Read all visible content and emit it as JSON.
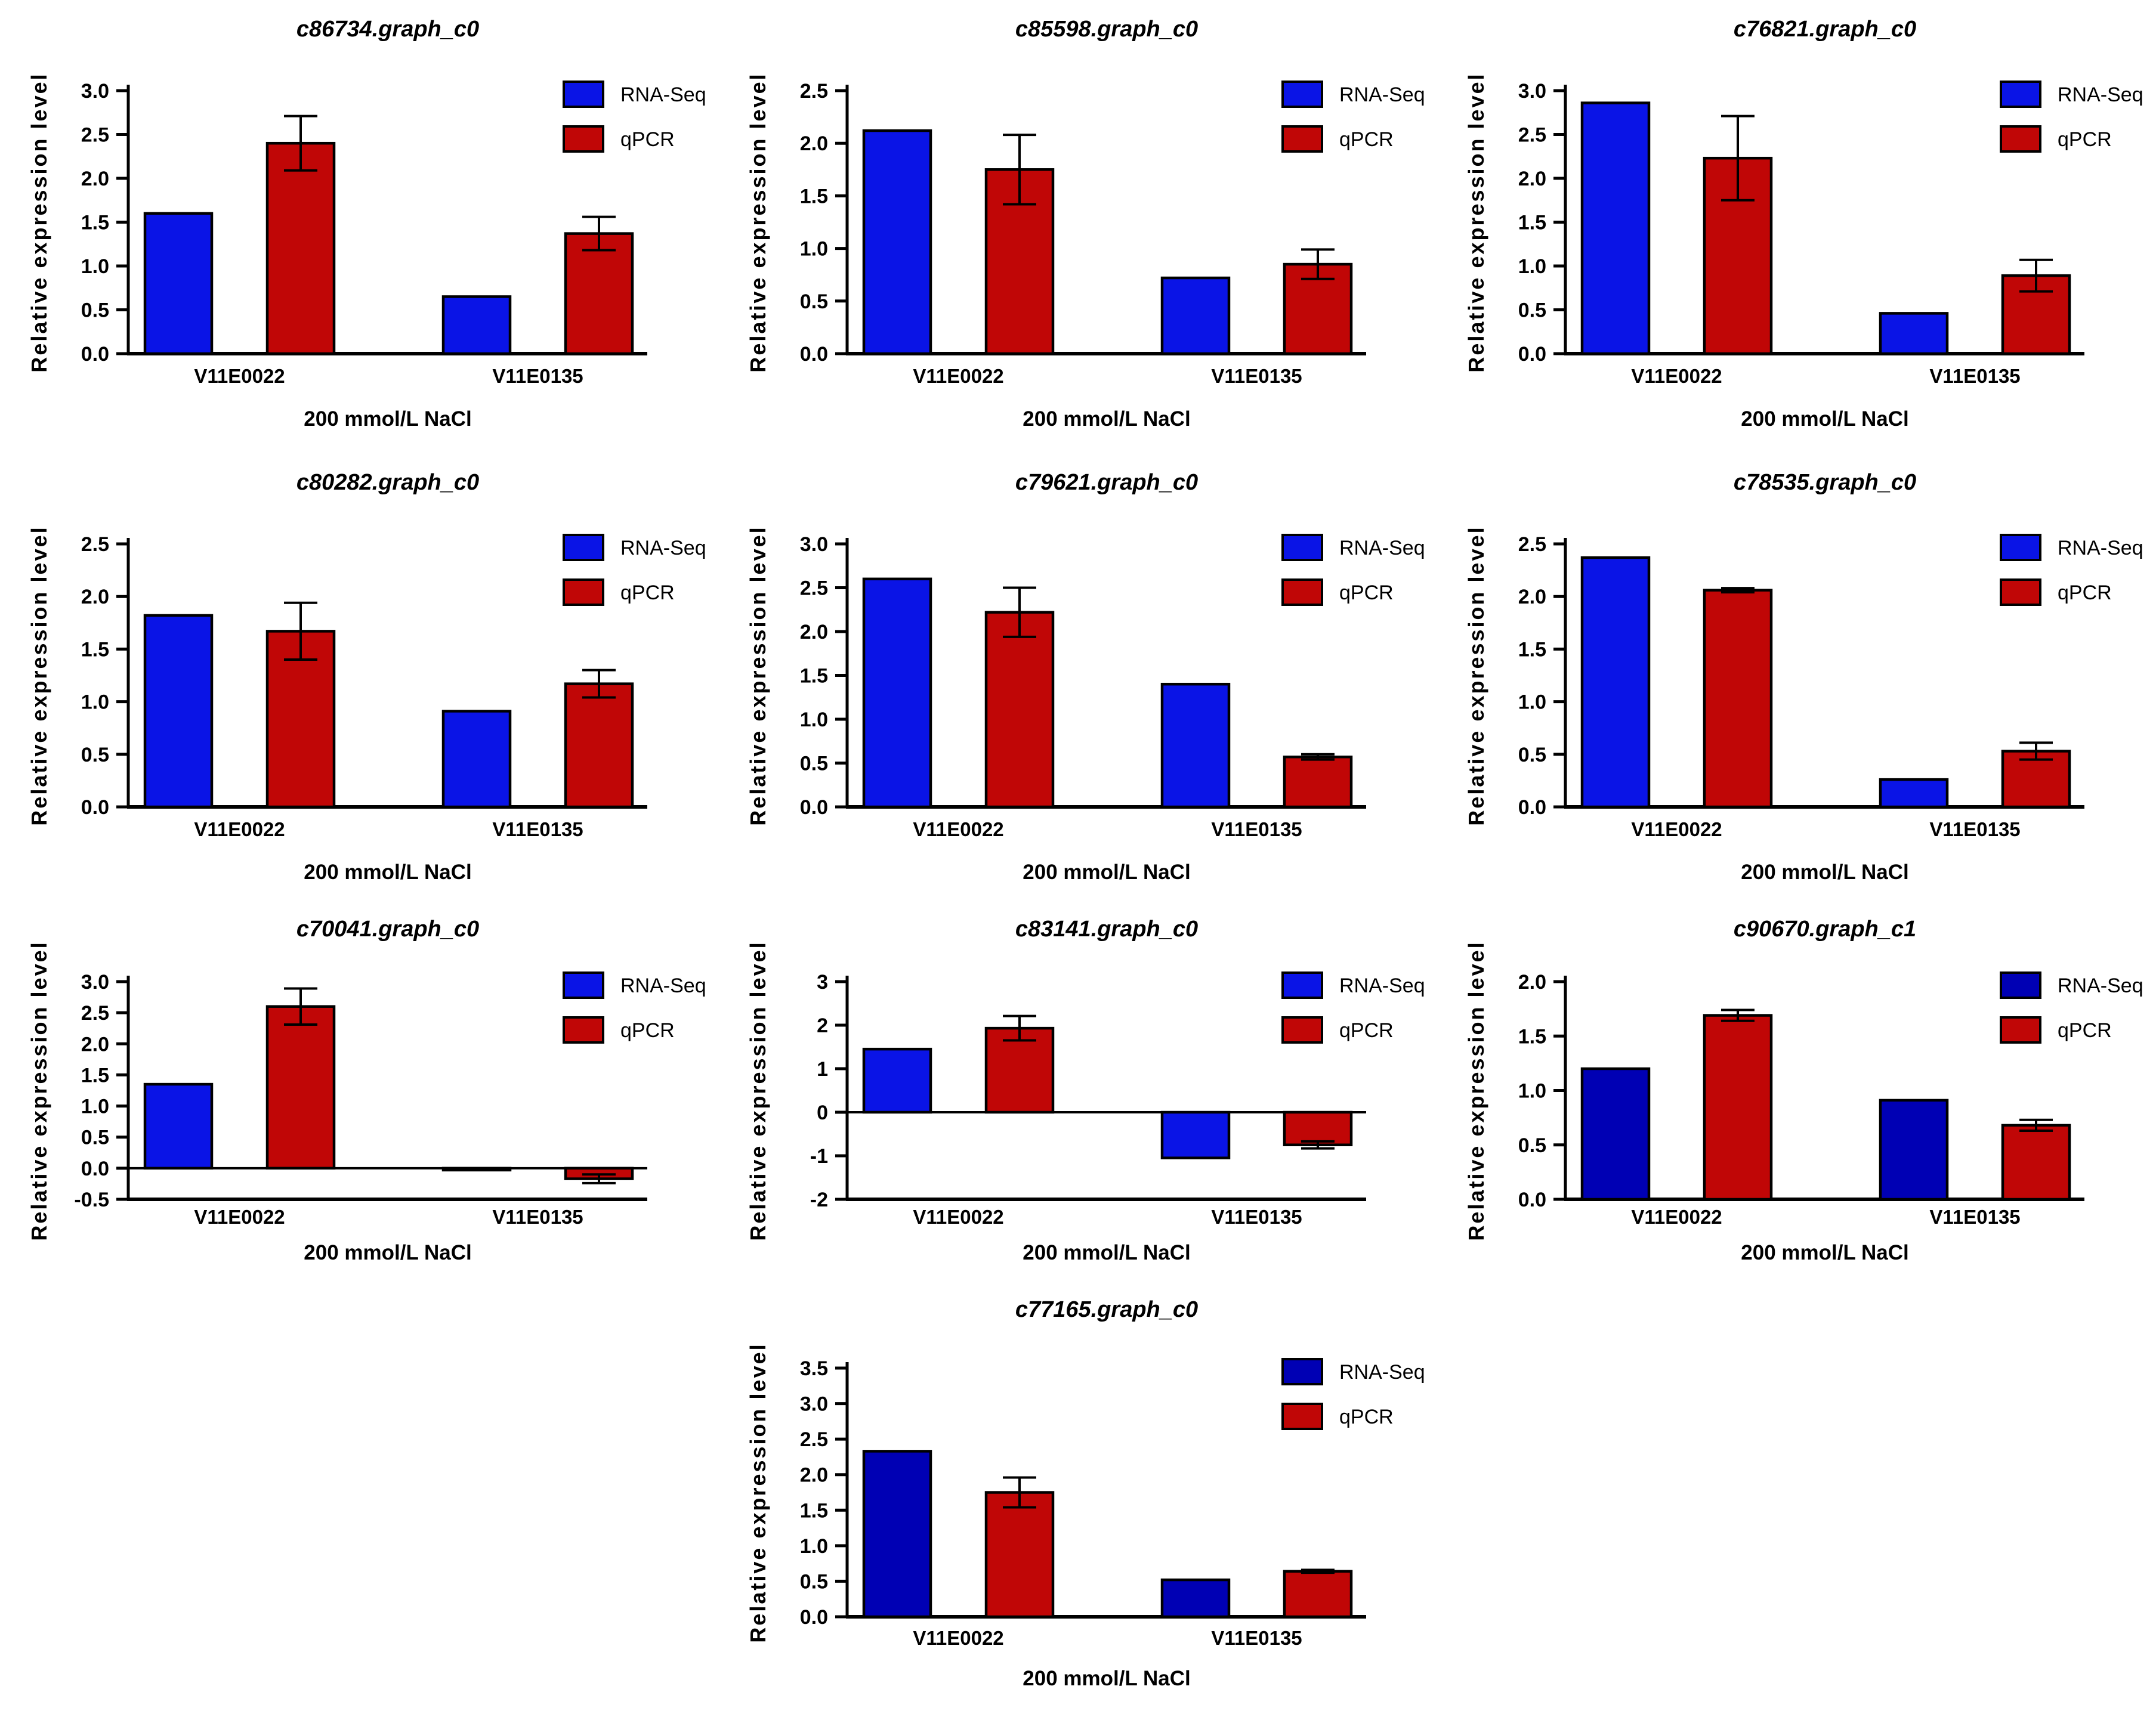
{
  "figure": {
    "ylabel": "Relative expression level",
    "xlabel": "200 mmol/L NaCl",
    "categories": [
      "V11E0022",
      "V11E0135"
    ],
    "legend": [
      "RNA-Seq",
      "qPCR"
    ],
    "colors": {
      "rna_seq_bright": "#0a14e6",
      "rna_seq_navy": "#0000b4",
      "qpcr_red": "#c00606",
      "axis": "#000000",
      "background": "#ffffff"
    }
  },
  "chart_data": [
    {
      "type": "bar",
      "title": "c86734.graph_c0",
      "ylabel": "Relative expression level",
      "xlabel": "200 mmol/L NaCl",
      "categories": [
        "V11E0022",
        "V11E0135"
      ],
      "series": [
        {
          "name": "RNA-Seq",
          "values": [
            1.6,
            0.65
          ],
          "errors": [
            0,
            0
          ]
        },
        {
          "name": "qPCR",
          "values": [
            2.4,
            1.37
          ],
          "errors": [
            0.31,
            0.19
          ]
        }
      ],
      "ylim": [
        0,
        3.0
      ],
      "yticks": [
        "0.0",
        "0.5",
        "1.0",
        "1.5",
        "2.0",
        "2.5",
        "3.0"
      ],
      "grid": false,
      "legend_position": "right",
      "colors": [
        "#0a14e6",
        "#c00606"
      ]
    },
    {
      "type": "bar",
      "title": "c85598.graph_c0",
      "ylabel": "Relative expression level",
      "xlabel": "200 mmol/L NaCl",
      "categories": [
        "V11E0022",
        "V11E0135"
      ],
      "series": [
        {
          "name": "RNA-Seq",
          "values": [
            2.12,
            0.72
          ],
          "errors": [
            0,
            0
          ]
        },
        {
          "name": "qPCR",
          "values": [
            1.75,
            0.85
          ],
          "errors": [
            0.33,
            0.14
          ]
        }
      ],
      "ylim": [
        0,
        2.5
      ],
      "yticks": [
        "0.0",
        "0.5",
        "1.0",
        "1.5",
        "2.0",
        "2.5"
      ],
      "grid": false,
      "legend_position": "right",
      "colors": [
        "#0a14e6",
        "#c00606"
      ]
    },
    {
      "type": "bar",
      "title": "c76821.graph_c0",
      "ylabel": "Relative expression level",
      "xlabel": "200 mmol/L NaCl",
      "categories": [
        "V11E0022",
        "V11E0135"
      ],
      "series": [
        {
          "name": "RNA-Seq",
          "values": [
            2.86,
            0.46
          ],
          "errors": [
            0,
            0
          ]
        },
        {
          "name": "qPCR",
          "values": [
            2.23,
            0.89
          ],
          "errors": [
            0.48,
            0.18
          ]
        }
      ],
      "ylim": [
        0,
        3.0
      ],
      "yticks": [
        "0.0",
        "0.5",
        "1.0",
        "1.5",
        "2.0",
        "2.5",
        "3.0"
      ],
      "grid": false,
      "legend_position": "right",
      "colors": [
        "#0a14e6",
        "#c00606"
      ]
    },
    {
      "type": "bar",
      "title": "c80282.graph_c0",
      "ylabel": "Relative expression level",
      "xlabel": "200 mmol/L NaCl",
      "categories": [
        "V11E0022",
        "V11E0135"
      ],
      "series": [
        {
          "name": "RNA-Seq",
          "values": [
            1.82,
            0.91
          ],
          "errors": [
            0,
            0
          ]
        },
        {
          "name": "qPCR",
          "values": [
            1.67,
            1.17
          ],
          "errors": [
            0.27,
            0.13
          ]
        }
      ],
      "ylim": [
        0,
        2.5
      ],
      "yticks": [
        "0.0",
        "0.5",
        "1.0",
        "1.5",
        "2.0",
        "2.5"
      ],
      "grid": false,
      "legend_position": "right",
      "colors": [
        "#0a14e6",
        "#c00606"
      ]
    },
    {
      "type": "bar",
      "title": "c79621.graph_c0",
      "ylabel": "Relative expression level",
      "xlabel": "200 mmol/L NaCl",
      "categories": [
        "V11E0022",
        "V11E0135"
      ],
      "series": [
        {
          "name": "RNA-Seq",
          "values": [
            2.6,
            1.4
          ],
          "errors": [
            0,
            0
          ]
        },
        {
          "name": "qPCR",
          "values": [
            2.22,
            0.57
          ],
          "errors": [
            0.28,
            0.03
          ]
        }
      ],
      "ylim": [
        0,
        3.0
      ],
      "yticks": [
        "0.0",
        "0.5",
        "1.0",
        "1.5",
        "2.0",
        "2.5",
        "3.0"
      ],
      "grid": false,
      "legend_position": "right",
      "colors": [
        "#0a14e6",
        "#c00606"
      ]
    },
    {
      "type": "bar",
      "title": "c78535.graph_c0",
      "ylabel": "Relative expression level",
      "xlabel": "200 mmol/L NaCl",
      "categories": [
        "V11E0022",
        "V11E0135"
      ],
      "series": [
        {
          "name": "RNA-Seq",
          "values": [
            2.37,
            0.26
          ],
          "errors": [
            0,
            0
          ]
        },
        {
          "name": "qPCR",
          "values": [
            2.06,
            0.53
          ],
          "errors": [
            0.02,
            0.08
          ]
        }
      ],
      "ylim": [
        0,
        2.5
      ],
      "yticks": [
        "0.0",
        "0.5",
        "1.0",
        "1.5",
        "2.0",
        "2.5"
      ],
      "grid": false,
      "legend_position": "right",
      "colors": [
        "#0a14e6",
        "#c00606"
      ]
    },
    {
      "type": "bar",
      "title": "c70041.graph_c0",
      "ylabel": "Relative expression level",
      "xlabel": "200 mmol/L NaCl",
      "categories": [
        "V11E0022",
        "V11E0135"
      ],
      "series": [
        {
          "name": "RNA-Seq",
          "values": [
            1.35,
            -0.03
          ],
          "errors": [
            0,
            0
          ]
        },
        {
          "name": "qPCR",
          "values": [
            2.6,
            -0.17
          ],
          "errors": [
            0.29,
            0.07
          ]
        }
      ],
      "ylim": [
        -0.5,
        3.0
      ],
      "yticks": [
        "-0.5",
        "0.0",
        "0.5",
        "1.0",
        "1.5",
        "2.0",
        "2.5",
        "3.0"
      ],
      "grid": false,
      "legend_position": "right",
      "colors": [
        "#0a14e6",
        "#c00606"
      ]
    },
    {
      "type": "bar",
      "title": "c83141.graph_c0",
      "ylabel": "Relative expression level",
      "xlabel": "200 mmol/L NaCl",
      "categories": [
        "V11E0022",
        "V11E0135"
      ],
      "series": [
        {
          "name": "RNA-Seq",
          "values": [
            1.45,
            -1.05
          ],
          "errors": [
            0,
            0
          ]
        },
        {
          "name": "qPCR",
          "values": [
            1.93,
            -0.75
          ],
          "errors": [
            0.28,
            0.08
          ]
        }
      ],
      "ylim": [
        -2,
        3
      ],
      "yticks": [
        "-2",
        "-1",
        "0",
        "1",
        "2",
        "3"
      ],
      "grid": false,
      "legend_position": "right",
      "colors": [
        "#0a14e6",
        "#c00606"
      ]
    },
    {
      "type": "bar",
      "title": "c90670.graph_c1",
      "ylabel": "Relative expression level",
      "xlabel": "200 mmol/L NaCl",
      "categories": [
        "V11E0022",
        "V11E0135"
      ],
      "series": [
        {
          "name": "RNA-Seq",
          "values": [
            1.2,
            0.91
          ],
          "errors": [
            0,
            0
          ]
        },
        {
          "name": "qPCR",
          "values": [
            1.69,
            0.68
          ],
          "errors": [
            0.05,
            0.05
          ]
        }
      ],
      "ylim": [
        0,
        2.0
      ],
      "yticks": [
        "0.0",
        "0.5",
        "1.0",
        "1.5",
        "2.0"
      ],
      "grid": false,
      "legend_position": "right",
      "colors": [
        "#0000b4",
        "#c00606"
      ]
    },
    {
      "type": "bar",
      "title": "c77165.graph_c0",
      "ylabel": "Relative expression level",
      "xlabel": "200 mmol/L NaCl",
      "categories": [
        "V11E0022",
        "V11E0135"
      ],
      "series": [
        {
          "name": "RNA-Seq",
          "values": [
            2.33,
            0.52
          ],
          "errors": [
            0,
            0
          ]
        },
        {
          "name": "qPCR",
          "values": [
            1.75,
            0.64
          ],
          "errors": [
            0.21,
            0.02
          ]
        }
      ],
      "ylim": [
        0,
        3.5
      ],
      "yticks": [
        "0.0",
        "0.5",
        "1.0",
        "1.5",
        "2.0",
        "2.5",
        "3.0",
        "3.5"
      ],
      "grid": false,
      "legend_position": "right",
      "colors": [
        "#0000b4",
        "#c00606"
      ]
    }
  ]
}
